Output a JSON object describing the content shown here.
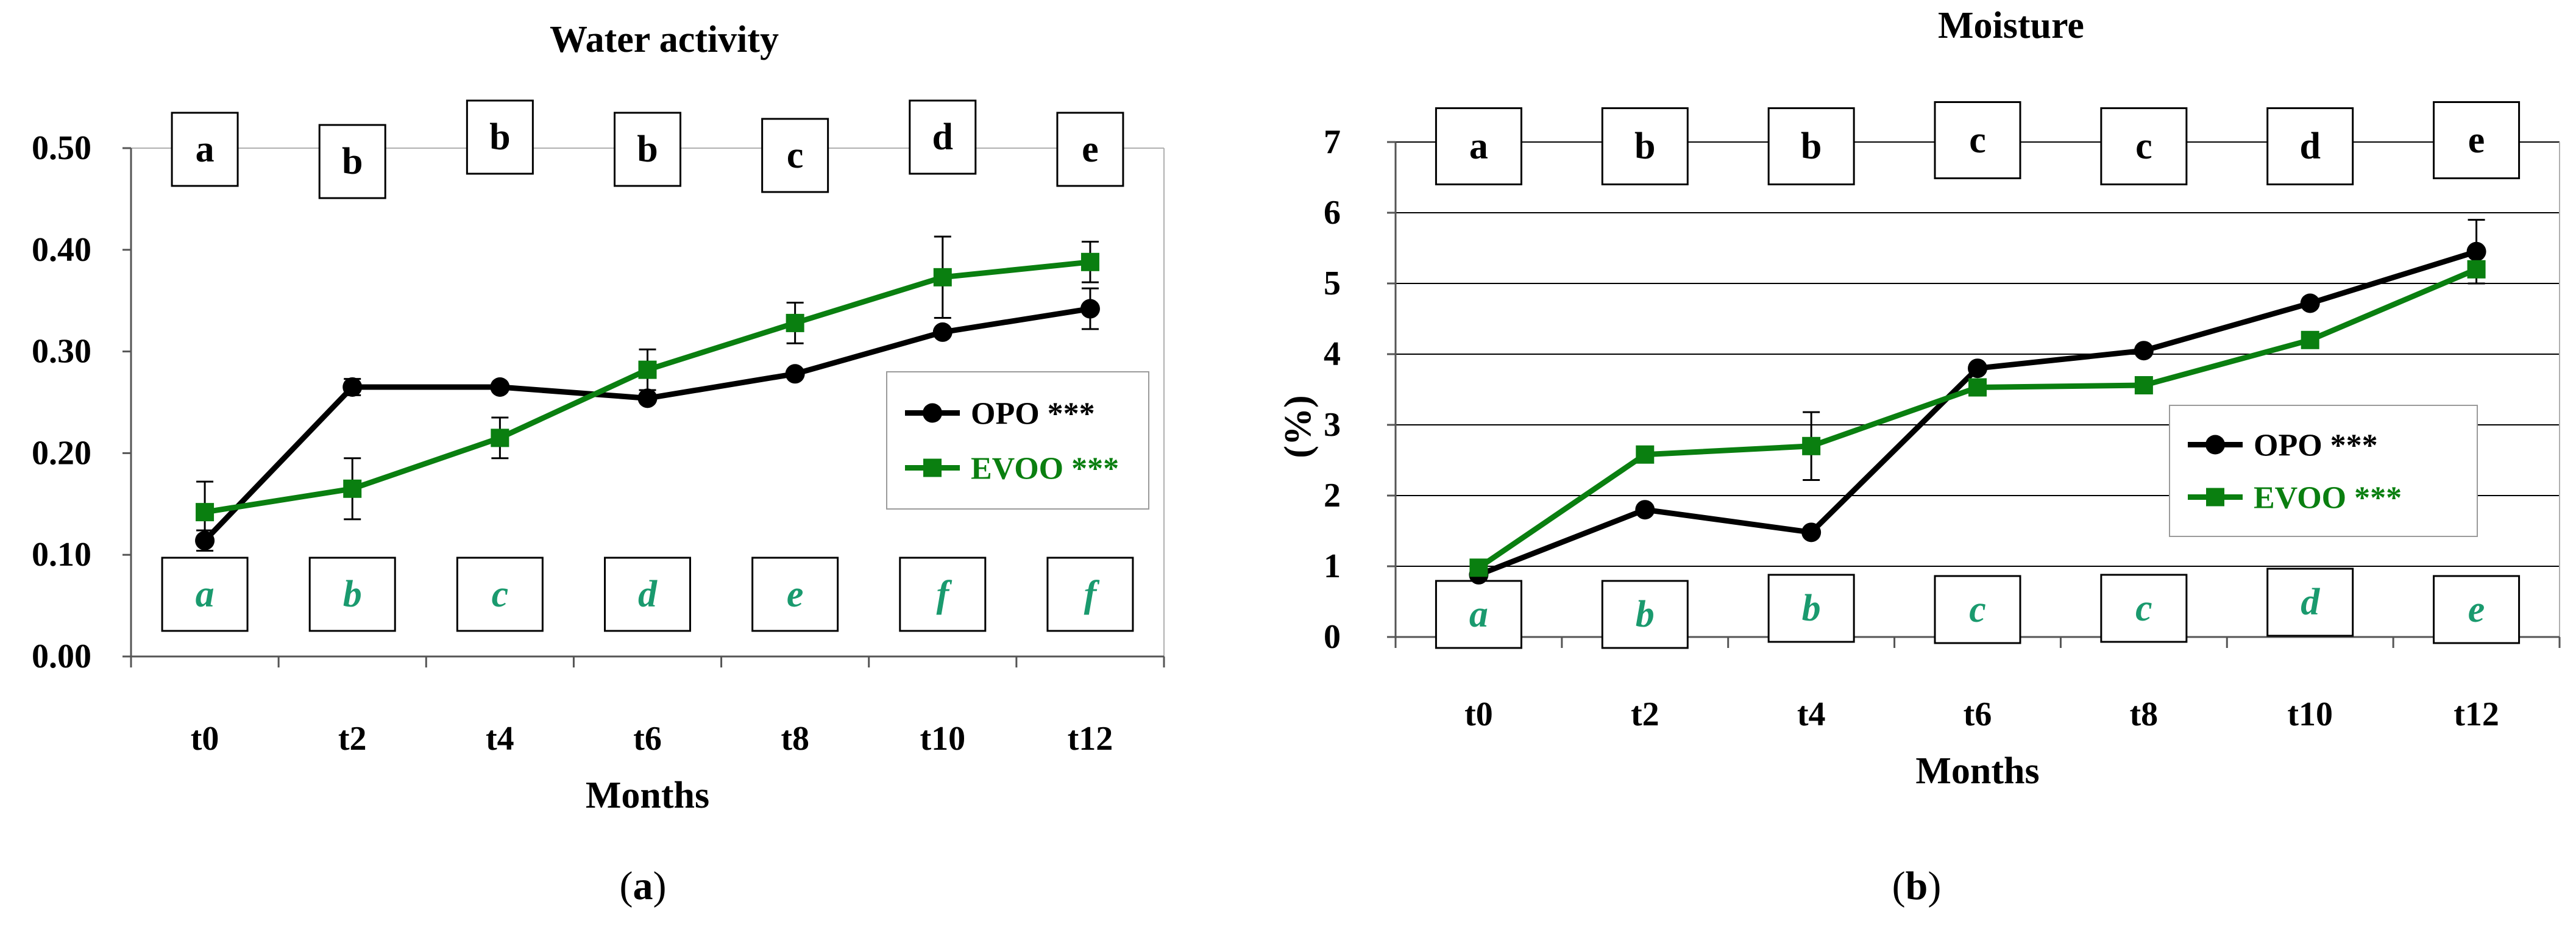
{
  "colors": {
    "opo": "#000000",
    "evoo": "#0a7f10",
    "evoo_letter": "#1a9a6e"
  },
  "chart_data": [
    {
      "type": "line",
      "id": "a",
      "title": "Water activity",
      "xlabel": "Months",
      "ylabel": "",
      "panel_label": "a",
      "categories": [
        "t0",
        "t2",
        "t4",
        "t6",
        "t8",
        "t10",
        "t12"
      ],
      "ylim": [
        0,
        0.5
      ],
      "yticks": [
        "0.00",
        "0.10",
        "0.20",
        "0.30",
        "0.40",
        "0.50"
      ],
      "grid": false,
      "legend": "right",
      "series": [
        {
          "name": "OPO ***",
          "marker": "circle",
          "values": [
            0.114,
            0.265,
            0.265,
            0.254,
            0.278,
            0.319,
            0.342
          ],
          "errors": [
            0.01,
            0.008,
            0.0,
            0.0,
            0.0,
            0.0,
            0.02
          ]
        },
        {
          "name": "EVOO ***",
          "marker": "square",
          "values": [
            0.142,
            0.165,
            0.215,
            0.282,
            0.328,
            0.373,
            0.388
          ],
          "errors": [
            0.03,
            0.03,
            0.02,
            0.02,
            0.02,
            0.04,
            0.02
          ]
        }
      ],
      "letters_top": [
        "a",
        "b",
        "b",
        "b",
        "c",
        "d",
        "e"
      ],
      "letters_bottom": [
        "a",
        "b",
        "c",
        "d",
        "e",
        "f",
        "f"
      ]
    },
    {
      "type": "line",
      "id": "b",
      "title": "Moisture",
      "xlabel": "Months",
      "ylabel": "(%)",
      "panel_label": "b",
      "categories": [
        "t0",
        "t2",
        "t4",
        "t6",
        "t8",
        "t10",
        "t12"
      ],
      "ylim": [
        0,
        7
      ],
      "yticks": [
        "0",
        "1",
        "2",
        "3",
        "4",
        "5",
        "6",
        "7"
      ],
      "grid": true,
      "legend": "right",
      "series": [
        {
          "name": "OPO ***",
          "marker": "circle",
          "values": [
            0.88,
            1.8,
            1.48,
            3.8,
            4.05,
            4.72,
            5.45
          ],
          "errors": [
            0.0,
            0.0,
            0.0,
            0.0,
            0.0,
            0.0,
            0.45
          ]
        },
        {
          "name": "EVOO ***",
          "marker": "square",
          "values": [
            0.98,
            2.58,
            2.7,
            3.53,
            3.56,
            4.2,
            5.2
          ],
          "errors": [
            0.0,
            0.0,
            0.48,
            0.0,
            0.0,
            0.0,
            0.0
          ]
        }
      ],
      "letters_top": [
        "a",
        "b",
        "b",
        "c",
        "c",
        "d",
        "e"
      ],
      "letters_bottom": [
        "a",
        "b",
        "b",
        "c",
        "c",
        "d",
        "e"
      ]
    }
  ]
}
